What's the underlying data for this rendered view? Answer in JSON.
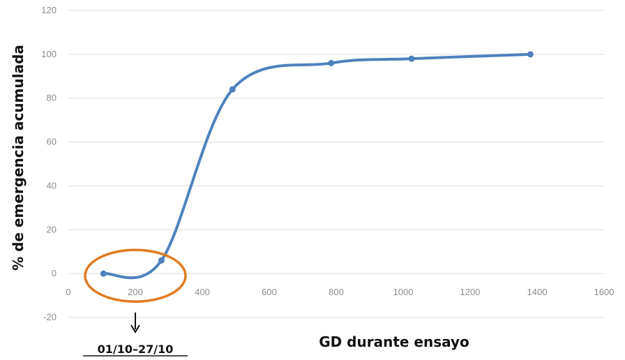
{
  "chart_data": {
    "type": "line",
    "xlabel": "GD durante ensayo",
    "ylabel": "% de emergencia acumulada",
    "xlim": [
      0,
      1600
    ],
    "ylim": [
      -20,
      120
    ],
    "x_ticks": [
      0,
      200,
      400,
      600,
      800,
      1000,
      1200,
      1400,
      1600
    ],
    "y_ticks": [
      -20,
      0,
      20,
      40,
      60,
      80,
      100,
      120
    ],
    "grid": "horizontal",
    "smooth": true,
    "series": [
      {
        "color": "#4f81bd",
        "x": [
          105,
          278,
          490,
          785,
          1025,
          1380
        ],
        "y": [
          0,
          6,
          84,
          96,
          98,
          100
        ]
      }
    ],
    "annotations": [
      {
        "type": "ellipse",
        "color": "#e07a1f",
        "center": [
          200,
          -1
        ],
        "text": "01/10–27/10",
        "underlined": true
      }
    ]
  }
}
